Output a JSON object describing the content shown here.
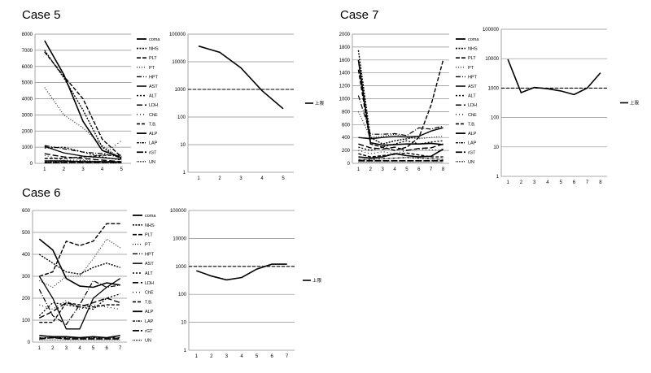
{
  "legend_labels": [
    "coma",
    "NHS",
    "PLT",
    "PT",
    "HPT",
    "AST",
    "ALT",
    "LDH",
    "ChE",
    "T.B.",
    "ALP",
    "LAP",
    "rGT",
    "UN"
  ],
  "chart_data": [
    {
      "id": "case5-lab",
      "panel_title": "Case 5",
      "type": "line",
      "x": [
        1,
        2,
        3,
        4,
        5
      ],
      "ylim": [
        0,
        8000
      ],
      "yticks": [
        0,
        1000,
        2000,
        3000,
        4000,
        5000,
        6000,
        7000,
        8000
      ],
      "series": [
        {
          "name": "coma",
          "values": [
            7600,
            5500,
            2600,
            800,
            350
          ]
        },
        {
          "name": "NHS",
          "values": [
            7000,
            5300,
            3300,
            1000,
            250
          ]
        },
        {
          "name": "PLT",
          "values": [
            6900,
            5400,
            4000,
            1500,
            400
          ]
        },
        {
          "name": "PT",
          "values": [
            4700,
            3000,
            2200,
            1100,
            300
          ]
        },
        {
          "name": "HPT",
          "values": [
            1100,
            900,
            700,
            600,
            350
          ]
        },
        {
          "name": "AST",
          "values": [
            1050,
            650,
            450,
            350,
            250
          ]
        },
        {
          "name": "ALT",
          "values": [
            950,
            1000,
            700,
            400,
            200
          ]
        },
        {
          "name": "LDH",
          "values": [
            600,
            400,
            300,
            200,
            100
          ]
        },
        {
          "name": "ChE",
          "values": [
            500,
            200,
            200,
            500,
            1400
          ]
        },
        {
          "name": "T.B.",
          "values": [
            300,
            300,
            400,
            500,
            500
          ]
        },
        {
          "name": "ALP",
          "values": [
            150,
            150,
            100,
            100,
            80
          ]
        },
        {
          "name": "LAP",
          "values": [
            80,
            100,
            150,
            120,
            100
          ]
        },
        {
          "name": "rGT",
          "values": [
            40,
            50,
            60,
            60,
            50
          ]
        },
        {
          "name": "UN",
          "values": [
            20,
            20,
            20,
            20,
            20
          ]
        }
      ]
    },
    {
      "id": "case5-log",
      "type": "line",
      "scale": "log",
      "x": [
        1,
        2,
        3,
        4,
        5
      ],
      "ylim": [
        1,
        100000
      ],
      "yticks": [
        1,
        10,
        100,
        1000,
        10000,
        100000
      ],
      "ytick_labels": [
        "1",
        "10",
        "100",
        "1000",
        "10000",
        "100000"
      ],
      "reference": 1000,
      "legend": "上限",
      "series": [
        {
          "name": "上限",
          "values": [
            37000,
            22000,
            6000,
            900,
            200
          ]
        }
      ]
    },
    {
      "id": "case7-lab",
      "panel_title": "Case 7",
      "type": "line",
      "x": [
        1,
        2,
        3,
        4,
        5,
        6,
        7,
        8
      ],
      "ylim": [
        0,
        2000
      ],
      "yticks": [
        0,
        200,
        400,
        600,
        800,
        1000,
        1200,
        1400,
        1600,
        1800,
        2000
      ],
      "series": [
        {
          "name": "coma",
          "values": [
            1600,
            320,
            280,
            290,
            300,
            300,
            310,
            290
          ]
        },
        {
          "name": "NHS",
          "values": [
            1750,
            400,
            300,
            350,
            380,
            420,
            500,
            560
          ]
        },
        {
          "name": "PLT",
          "values": [
            1450,
            300,
            250,
            200,
            250,
            400,
            900,
            1600
          ]
        },
        {
          "name": "PT",
          "values": [
            800,
            400,
            420,
            450,
            400,
            380,
            400,
            420
          ]
        },
        {
          "name": "HPT",
          "values": [
            1050,
            450,
            450,
            460,
            430,
            550,
            530,
            580
          ]
        },
        {
          "name": "AST",
          "values": [
            400,
            380,
            400,
            420,
            410,
            420,
            500,
            550
          ]
        },
        {
          "name": "ALT",
          "values": [
            250,
            200,
            250,
            300,
            350,
            300,
            330,
            350
          ]
        },
        {
          "name": "LDH",
          "values": [
            300,
            240,
            220,
            250,
            200,
            230,
            240,
            300
          ]
        },
        {
          "name": "ChE",
          "values": [
            200,
            150,
            180,
            150,
            200,
            220,
            210,
            200
          ]
        },
        {
          "name": "T.B.",
          "values": [
            150,
            100,
            120,
            140,
            160,
            130,
            100,
            100
          ]
        },
        {
          "name": "ALP",
          "values": [
            100,
            80,
            100,
            150,
            120,
            100,
            110,
            220
          ]
        },
        {
          "name": "LAP",
          "values": [
            60,
            60,
            70,
            80,
            90,
            80,
            70,
            60
          ]
        },
        {
          "name": "rGT",
          "values": [
            40,
            40,
            40,
            40,
            40,
            40,
            40,
            40
          ]
        },
        {
          "name": "UN",
          "values": [
            20,
            20,
            20,
            20,
            20,
            20,
            20,
            20
          ]
        }
      ]
    },
    {
      "id": "case7-log",
      "type": "line",
      "scale": "log",
      "x": [
        1,
        2,
        3,
        4,
        5,
        6,
        7,
        8
      ],
      "ylim": [
        1,
        100000
      ],
      "yticks": [
        1,
        10,
        100,
        1000,
        10000,
        100000
      ],
      "ytick_labels": [
        "1",
        "10",
        "100",
        "1000",
        "10000",
        "100000"
      ],
      "reference": 1000,
      "legend": "上限",
      "series": [
        {
          "name": "上限",
          "values": [
            9500,
            700,
            1050,
            950,
            800,
            600,
            1000,
            3300
          ]
        }
      ]
    },
    {
      "id": "case6-lab",
      "panel_title": "Case 6",
      "type": "line",
      "x": [
        1,
        2,
        3,
        4,
        5,
        6,
        7
      ],
      "ylim": [
        0,
        600
      ],
      "yticks": [
        0,
        100,
        200,
        300,
        400,
        500,
        600
      ],
      "series": [
        {
          "name": "coma",
          "values": [
            470,
            420,
            290,
            255,
            250,
            270,
            260
          ]
        },
        {
          "name": "NHS",
          "values": [
            400,
            360,
            320,
            310,
            340,
            360,
            340
          ]
        },
        {
          "name": "PLT",
          "values": [
            300,
            320,
            460,
            440,
            460,
            540,
            540
          ]
        },
        {
          "name": "PT",
          "values": [
            280,
            250,
            300,
            300,
            380,
            470,
            430
          ]
        },
        {
          "name": "HPT",
          "values": [
            240,
            120,
            80,
            170,
            280,
            250,
            260
          ]
        },
        {
          "name": "AST",
          "values": [
            300,
            200,
            60,
            60,
            200,
            250,
            290
          ]
        },
        {
          "name": "ALT",
          "values": [
            120,
            180,
            170,
            160,
            150,
            200,
            220
          ]
        },
        {
          "name": "LDH",
          "values": [
            110,
            140,
            180,
            160,
            180,
            200,
            180
          ]
        },
        {
          "name": "ChE",
          "values": [
            170,
            150,
            190,
            150,
            170,
            160,
            150
          ]
        },
        {
          "name": "T.B.",
          "values": [
            90,
            90,
            180,
            170,
            160,
            170,
            170
          ]
        },
        {
          "name": "ALP",
          "values": [
            30,
            25,
            25,
            20,
            25,
            20,
            30
          ]
        },
        {
          "name": "LAP",
          "values": [
            20,
            20,
            20,
            20,
            20,
            20,
            20
          ]
        },
        {
          "name": "rGT",
          "values": [
            15,
            20,
            15,
            15,
            15,
            15,
            15
          ]
        },
        {
          "name": "UN",
          "values": [
            10,
            10,
            10,
            10,
            10,
            10,
            10
          ]
        }
      ]
    },
    {
      "id": "case6-log",
      "type": "line",
      "scale": "log",
      "x": [
        1,
        2,
        3,
        4,
        5,
        6,
        7
      ],
      "ylim": [
        1,
        100000
      ],
      "yticks": [
        1,
        10,
        100,
        1000,
        10000,
        100000
      ],
      "ytick_labels": [
        "1",
        "10",
        "100",
        "1000",
        "10000",
        "100000"
      ],
      "reference": 1000,
      "legend": "上限",
      "series": [
        {
          "name": "上限",
          "values": [
            700,
            450,
            330,
            400,
            800,
            1200,
            1200
          ]
        }
      ]
    }
  ]
}
